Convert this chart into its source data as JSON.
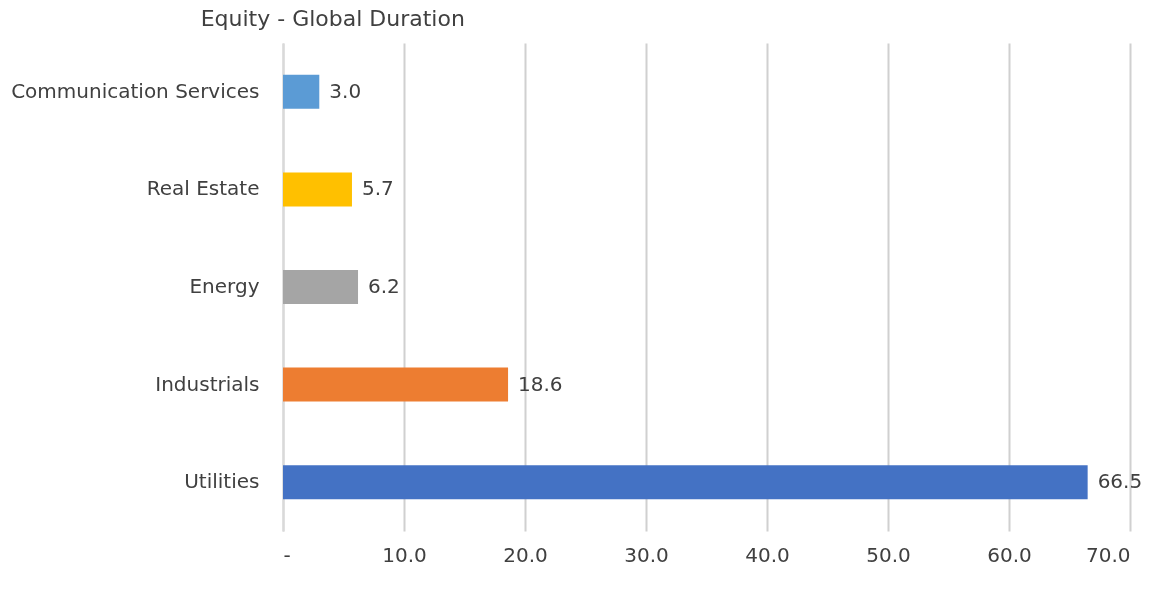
{
  "chart_data": {
    "type": "bar",
    "orientation": "horizontal",
    "title": "Equity - Global Duration",
    "categories": [
      "Communication Services",
      "Real Estate",
      "Energy",
      "Industrials",
      "Utilities"
    ],
    "values": [
      3.0,
      5.7,
      6.2,
      18.6,
      66.5
    ],
    "colors": [
      "#5b9bd5",
      "#ffc000",
      "#a5a5a5",
      "#ed7d31",
      "#4472c4"
    ],
    "xlim": [
      0,
      70
    ],
    "xticks": [
      {
        "value": 0,
        "label": "-"
      },
      {
        "value": 10,
        "label": "10.0"
      },
      {
        "value": 20,
        "label": "20.0"
      },
      {
        "value": 30,
        "label": "30.0"
      },
      {
        "value": 40,
        "label": "40.0"
      },
      {
        "value": 50,
        "label": "50.0"
      },
      {
        "value": 60,
        "label": "60.0"
      },
      {
        "value": 70,
        "label": "70.0"
      }
    ],
    "value_labels": [
      "3.0",
      "5.7",
      "6.2",
      "18.6",
      "66.5"
    ],
    "grid": "x"
  }
}
